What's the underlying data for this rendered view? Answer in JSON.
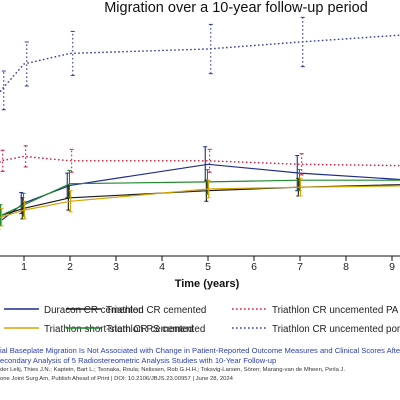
{
  "chart_data": {
    "type": "line",
    "title": "Migration over a 10-year follow-up period",
    "xlabel": "Time (years)",
    "ylabel": "",
    "xlim": [
      0,
      9.5
    ],
    "ylim": [
      0,
      2.5
    ],
    "x_ticks": [
      "1",
      "2",
      "3",
      "4",
      "5",
      "6",
      "7",
      "8",
      "9"
    ],
    "legend_position": "bottom",
    "series": [
      {
        "name": "Duracon CR cemented",
        "color": "#1f2b8c",
        "dash": "solid",
        "x": [
          0,
          0.5,
          1,
          2,
          5,
          7,
          10
        ],
        "y": [
          0.1,
          0.22,
          0.42,
          0.62,
          0.86,
          0.76,
          0.66
        ],
        "err": [
          0,
          0.1,
          0.12,
          0.14,
          0.2,
          0.2,
          0.2
        ]
      },
      {
        "name": "Triathlon CR cemented",
        "color": "#1a1a1a",
        "dash": "solid",
        "x": [
          0,
          0.5,
          1,
          2,
          5,
          7,
          10
        ],
        "y": [
          0.16,
          0.28,
          0.36,
          0.48,
          0.56,
          0.6,
          0.64
        ],
        "err": [
          0,
          0.12,
          0.12,
          0.14,
          0.12,
          0.1,
          0.1
        ]
      },
      {
        "name": "Triathlon PS cemented",
        "color": "#1e8a2a",
        "dash": "solid",
        "x": [
          0,
          0.5,
          1,
          2,
          5,
          7,
          10
        ],
        "y": [
          0.12,
          0.28,
          0.4,
          0.64,
          0.66,
          0.68,
          0.68
        ],
        "err": [
          0,
          0.12,
          0.13,
          0.15,
          0.14,
          0.12,
          0.12
        ]
      },
      {
        "name": "Triathlon short-stem CR cemented",
        "color": "#d4a400",
        "dash": "solid",
        "x": [
          0,
          0.5,
          1,
          2,
          5,
          7,
          10
        ],
        "y": [
          0.14,
          0.26,
          0.34,
          0.44,
          0.58,
          0.6,
          0.62
        ],
        "err": [
          0,
          0.1,
          0.1,
          0.12,
          0.1,
          0.1,
          0.1
        ]
      },
      {
        "name": "Triathlon CR uncemented PA",
        "color": "#c8203a",
        "dash": "dotted",
        "x": [
          0,
          0.5,
          1,
          2,
          5,
          7,
          10
        ],
        "y": [
          0.55,
          0.9,
          0.95,
          0.9,
          0.9,
          0.86,
          0.84
        ],
        "err": [
          0,
          0.12,
          0.12,
          0.13,
          0.13,
          0.12,
          0.12
        ]
      },
      {
        "name": "Triathlon CR uncemented porous",
        "color": "#303a9a",
        "dash": "dotted",
        "x": [
          0,
          0.5,
          1,
          2,
          5,
          7,
          9.8
        ],
        "y": [
          1.1,
          1.7,
          2.0,
          2.12,
          2.17,
          2.25,
          2.35
        ],
        "err": [
          0,
          0.22,
          0.25,
          0.25,
          0.28,
          0.28,
          0.28
        ]
      }
    ]
  },
  "footer": {
    "title": "ial Baseplate Migration Is Not Associated with Change in Patient-Reported Outcome Measures and Clinical Scores After TKA",
    "subtitle": "econdary Analysis of 5 Radiostereometric Analysis Studies with 10-Year Follow-up",
    "authors": "der Lelij, Thies J.N.; Kaptein, Bart L.; Tsonaka, Roula; Nelissen, Rob G.H.H.; Toksvig-Larsen, Sören; Marang-van de Mheen, Perla J.",
    "citation": "one Joint Surg Am, Publish Ahead of Print | DOI: 10.2106/JBJS.23.00957 | June 28, 2024"
  }
}
